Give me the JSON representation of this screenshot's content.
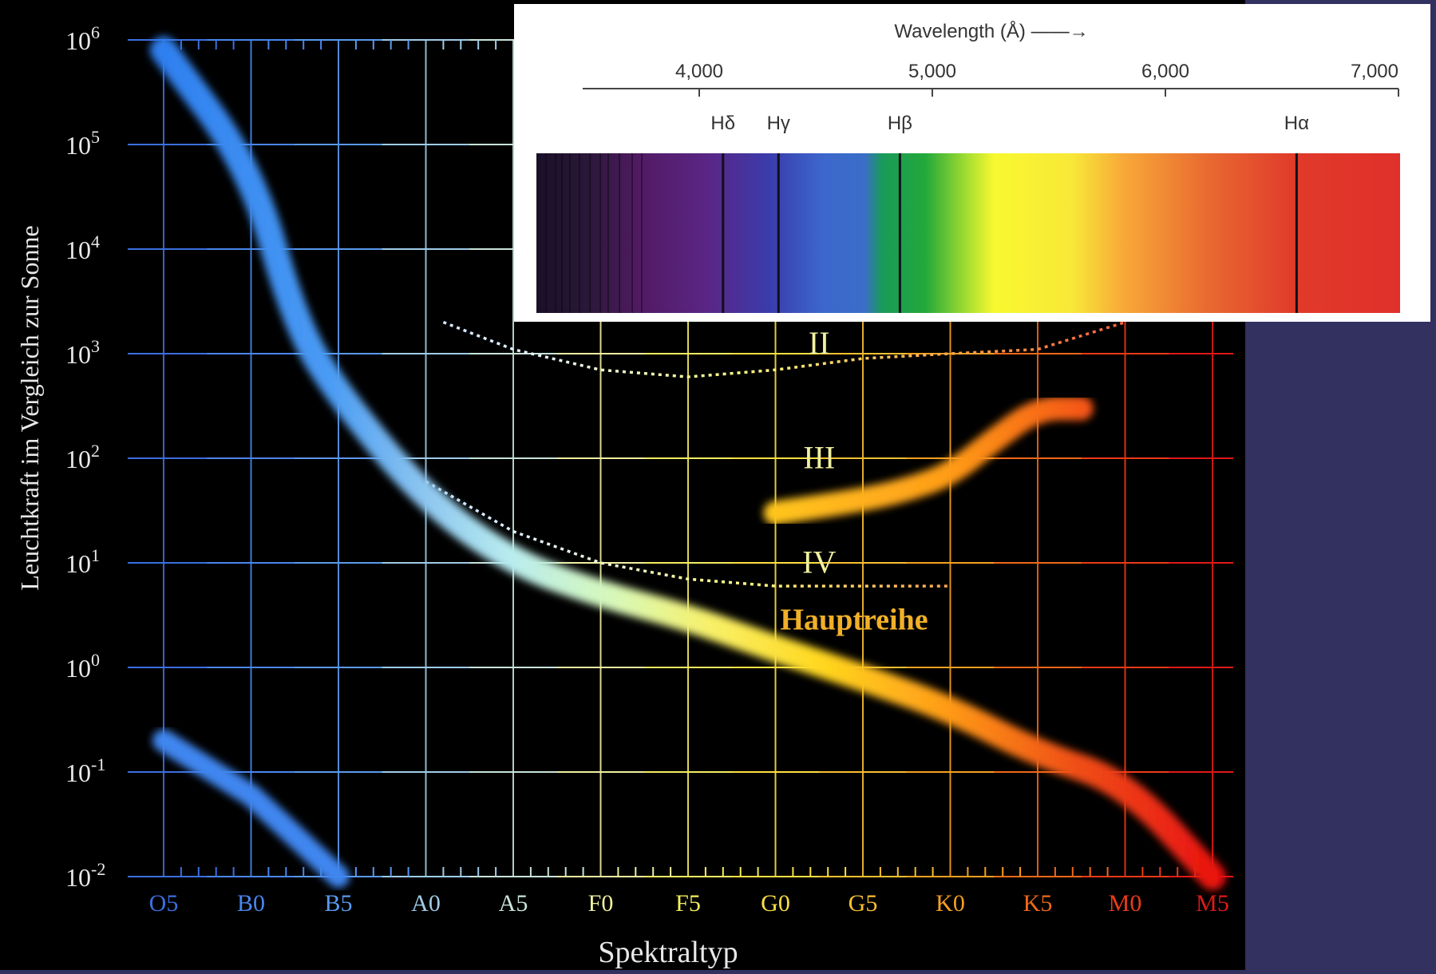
{
  "chart_data": [
    {
      "type": "scatter",
      "title": "",
      "xlabel": "Spektraltyp",
      "ylabel": "Leuchtkraft im Vergleich zur Sonne",
      "y_scale": "log",
      "ylim": [
        0.01,
        1000000
      ],
      "grid": true,
      "categories": [
        "O5",
        "B0",
        "B5",
        "A0",
        "A5",
        "F0",
        "F5",
        "G0",
        "G5",
        "K0",
        "K5",
        "M0",
        "M5"
      ],
      "category_colors": [
        "#3b6fe0",
        "#4a86ee",
        "#5a9aee",
        "#9fcce8",
        "#c8e4d8",
        "#f0f0a0",
        "#f6ee60",
        "#fde040",
        "#fbc030",
        "#f8a020",
        "#f06818",
        "#ee3a18",
        "#e01818"
      ],
      "y_ticks": [
        {
          "base": "10",
          "exp": "6",
          "value": 1000000
        },
        {
          "base": "10",
          "exp": "5",
          "value": 100000
        },
        {
          "base": "10",
          "exp": "4",
          "value": 10000
        },
        {
          "base": "10",
          "exp": "3",
          "value": 1000
        },
        {
          "base": "10",
          "exp": "2",
          "value": 100
        },
        {
          "base": "10",
          "exp": "1",
          "value": 10
        },
        {
          "base": "10",
          "exp": "0",
          "value": 1
        },
        {
          "base": "10",
          "exp": "-1",
          "value": 0.1
        },
        {
          "base": "10",
          "exp": "-2",
          "value": 0.01
        }
      ],
      "series": [
        {
          "name": "Hauptreihe",
          "points": [
            [
              0,
              800000
            ],
            [
              1,
              60000
            ],
            [
              1.5,
              2000
            ],
            [
              2,
              400
            ],
            [
              3,
              40
            ],
            [
              4,
              10
            ],
            [
              5,
              5
            ],
            [
              6,
              3
            ],
            [
              7,
              1.5
            ],
            [
              8,
              0.8
            ],
            [
              9,
              0.4
            ],
            [
              10,
              0.15
            ],
            [
              11,
              0.08
            ],
            [
              12,
              0.01
            ]
          ]
        },
        {
          "name": "III",
          "points": [
            [
              7,
              30
            ],
            [
              8,
              40
            ],
            [
              8.5,
              50
            ],
            [
              9,
              70
            ],
            [
              9.5,
              150
            ],
            [
              10,
              300
            ],
            [
              10.5,
              300
            ]
          ]
        },
        {
          "name": "",
          "points": [
            [
              0,
              0.2
            ],
            [
              1,
              0.06
            ],
            [
              2,
              0.01
            ]
          ]
        },
        {
          "name": "II",
          "points": [
            [
              3.2,
              2000
            ],
            [
              4,
              1100
            ],
            [
              5,
              700
            ],
            [
              6,
              600
            ],
            [
              7,
              700
            ],
            [
              8,
              900
            ],
            [
              9,
              1000
            ],
            [
              10,
              1100
            ],
            [
              11,
              2000
            ]
          ]
        },
        {
          "name": "IV",
          "points": [
            [
              3,
              60
            ],
            [
              4,
              20
            ],
            [
              5,
              10
            ],
            [
              6,
              7
            ],
            [
              7,
              6
            ],
            [
              8,
              6
            ],
            [
              9,
              6
            ]
          ]
        }
      ],
      "annotations": [
        {
          "text": "II",
          "x": 7.5,
          "y": 1000
        },
        {
          "text": "III",
          "x": 7.5,
          "y": 80
        },
        {
          "text": "IV",
          "x": 7.5,
          "y": 8
        },
        {
          "text": "Hauptreihe",
          "x": 7.9,
          "y": 2.3
        }
      ]
    },
    {
      "type": "line",
      "title": "Wavelength (Å) ——→",
      "xlim": [
        3500,
        7000
      ],
      "x_ticks": [
        {
          "label": "4,000",
          "value": 4000
        },
        {
          "label": "5,000",
          "value": 5000
        },
        {
          "label": "6,000",
          "value": 6000
        },
        {
          "label": "7,000",
          "value": 7000
        }
      ],
      "absorption_lines": [
        {
          "label": "Hδ",
          "value": 4102
        },
        {
          "label": "Hγ",
          "value": 4340
        },
        {
          "label": "Hβ",
          "value": 4861
        },
        {
          "label": "Hα",
          "value": 6563
        }
      ]
    }
  ]
}
